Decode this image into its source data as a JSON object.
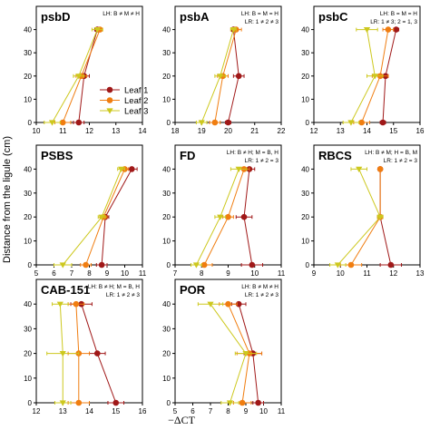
{
  "figure": {
    "y_axis_label": "Distance from the ligule (cm)",
    "x_axis_label": "−ΔCT",
    "legend": [
      "Leaf 1",
      "Leaf 2",
      "Leaf 3"
    ]
  },
  "colors": {
    "leaf1": "#a01818",
    "leaf2": "#f07d10",
    "leaf3": "#cdc81e"
  },
  "chart_data": [
    {
      "type": "line",
      "title": "psbD",
      "annotation": [
        "LH: B ≠ M ≠ H"
      ],
      "y": [
        40,
        20,
        0
      ],
      "ylim": [
        0,
        50
      ],
      "yticks": [
        0,
        10,
        20,
        30,
        40
      ],
      "xlim": [
        10,
        14
      ],
      "xticks": [
        10,
        11,
        12,
        13,
        14
      ],
      "series": [
        {
          "name": "Leaf 1",
          "x": [
            12.3,
            11.8,
            11.6
          ],
          "err": [
            0.1,
            0.2,
            0.2
          ]
        },
        {
          "name": "Leaf 2",
          "x": [
            12.4,
            11.7,
            11.0
          ],
          "err": [
            0.1,
            0.2,
            0.3
          ]
        },
        {
          "name": "Leaf 3",
          "x": [
            12.3,
            11.6,
            10.6
          ],
          "err": [
            0.2,
            0.2,
            0.3
          ]
        }
      ]
    },
    {
      "type": "line",
      "title": "psbA",
      "annotation": [
        "LH: B = M = H",
        "LR: 1 ≠ 2 ≠ 3"
      ],
      "y": [
        40,
        20,
        0
      ],
      "ylim": [
        0,
        50
      ],
      "yticks": [
        0,
        10,
        20,
        30,
        40
      ],
      "xlim": [
        18,
        22
      ],
      "xticks": [
        18,
        19,
        20,
        21,
        22
      ],
      "series": [
        {
          "name": "Leaf 1",
          "x": [
            20.2,
            20.4,
            20.0
          ],
          "err": [
            0.1,
            0.2,
            0.1
          ]
        },
        {
          "name": "Leaf 2",
          "x": [
            20.3,
            19.8,
            19.5
          ],
          "err": [
            0.2,
            0.2,
            0.2
          ]
        },
        {
          "name": "Leaf 3",
          "x": [
            20.2,
            19.7,
            19.0
          ],
          "err": [
            0.1,
            0.2,
            0.2
          ]
        }
      ]
    },
    {
      "type": "line",
      "title": "psbC",
      "annotation": [
        "LH: B = M = H",
        "LR: 1 ≠ 3; 2 = 1, 3"
      ],
      "y": [
        40,
        20,
        0
      ],
      "ylim": [
        0,
        50
      ],
      "yticks": [
        0,
        10,
        20,
        30,
        40
      ],
      "xlim": [
        12,
        16
      ],
      "xticks": [
        12,
        13,
        14,
        15,
        16
      ],
      "series": [
        {
          "name": "Leaf 1",
          "x": [
            15.1,
            14.7,
            14.6
          ],
          "err": [
            0.1,
            0.1,
            0.1
          ]
        },
        {
          "name": "Leaf 2",
          "x": [
            14.8,
            14.5,
            13.8
          ],
          "err": [
            0.2,
            0.3,
            0.3
          ]
        },
        {
          "name": "Leaf 3",
          "x": [
            14.0,
            14.3,
            13.4
          ],
          "err": [
            0.4,
            0.3,
            0.3
          ]
        }
      ]
    },
    {
      "type": "line",
      "title": "PSBS",
      "annotation": [],
      "y": [
        40,
        20,
        0
      ],
      "ylim": [
        0,
        50
      ],
      "yticks": [
        0,
        10,
        20,
        30,
        40
      ],
      "xlim": [
        5,
        11
      ],
      "xticks": [
        5,
        6,
        7,
        8,
        9,
        10,
        11
      ],
      "series": [
        {
          "name": "Leaf 1",
          "x": [
            10.4,
            8.9,
            8.7
          ],
          "err": [
            0.3,
            0.2,
            0.3
          ]
        },
        {
          "name": "Leaf 2",
          "x": [
            10.0,
            8.8,
            7.8
          ],
          "err": [
            0.2,
            0.2,
            0.3
          ]
        },
        {
          "name": "Leaf 3",
          "x": [
            9.8,
            8.7,
            6.5
          ],
          "err": [
            0.2,
            0.2,
            0.5
          ]
        }
      ]
    },
    {
      "type": "line",
      "title": "FD",
      "annotation": [
        "LH: B ≠ H; M = B, H",
        "LR: 1 ≠ 2 = 3"
      ],
      "y": [
        40,
        20,
        0
      ],
      "ylim": [
        0,
        50
      ],
      "yticks": [
        0,
        10,
        20,
        30,
        40
      ],
      "xlim": [
        7,
        11
      ],
      "xticks": [
        7,
        8,
        9,
        10,
        11
      ],
      "series": [
        {
          "name": "Leaf 1",
          "x": [
            9.8,
            9.6,
            9.9
          ],
          "err": [
            0.2,
            0.3,
            0.4
          ]
        },
        {
          "name": "Leaf 2",
          "x": [
            9.6,
            9.0,
            8.1
          ],
          "err": [
            0.2,
            0.2,
            0.3
          ]
        },
        {
          "name": "Leaf 3",
          "x": [
            9.4,
            8.7,
            7.8
          ],
          "err": [
            0.3,
            0.2,
            0.2
          ]
        }
      ]
    },
    {
      "type": "line",
      "title": "RBCS",
      "annotation": [
        "LH: B ≠ M; H = B, M",
        "LR: 1 ≠ 2 = 3"
      ],
      "y": [
        40,
        20,
        0
      ],
      "ylim": [
        0,
        50
      ],
      "yticks": [
        0,
        10,
        20,
        30,
        40
      ],
      "xlim": [
        9,
        13
      ],
      "xticks": [
        9,
        10,
        11,
        12,
        13
      ],
      "series": [
        {
          "name": "Leaf 1",
          "x": [
            11.5,
            11.5,
            11.9
          ],
          "err": [
            0.05,
            0.1,
            0.4
          ]
        },
        {
          "name": "Leaf 2",
          "x": [
            11.5,
            11.5,
            10.4
          ],
          "err": [
            0.05,
            0.1,
            0.4
          ]
        },
        {
          "name": "Leaf 3",
          "x": [
            10.7,
            11.5,
            9.9
          ],
          "err": [
            0.3,
            0.1,
            0.3
          ]
        }
      ]
    },
    {
      "type": "line",
      "title": "CAB-151",
      "annotation": [
        "LH: B ≠ H; M = B, H",
        "LR: 1 ≠ 2 ≠ 3"
      ],
      "y": [
        40,
        20,
        0
      ],
      "ylim": [
        0,
        50
      ],
      "yticks": [
        0,
        10,
        20,
        30,
        40
      ],
      "xlim": [
        12,
        16
      ],
      "xticks": [
        12,
        13,
        14,
        15,
        16
      ],
      "series": [
        {
          "name": "Leaf 1",
          "x": [
            13.7,
            14.3,
            15.0
          ],
          "err": [
            0.4,
            0.3,
            0.3
          ]
        },
        {
          "name": "Leaf 2",
          "x": [
            13.5,
            13.6,
            13.6
          ],
          "err": [
            0.3,
            0.4,
            0.4
          ]
        },
        {
          "name": "Leaf 3",
          "x": [
            12.9,
            13.0,
            13.0
          ],
          "err": [
            0.3,
            0.6,
            0.3
          ]
        }
      ]
    },
    {
      "type": "line",
      "title": "POR",
      "annotation": [
        "LH: B ≠ M ≠ H",
        "LR: 1 ≠ 2 ≠ 3"
      ],
      "y": [
        40,
        20,
        0
      ],
      "ylim": [
        0,
        50
      ],
      "yticks": [
        0,
        10,
        20,
        30,
        40
      ],
      "xlim": [
        5,
        11
      ],
      "xticks": [
        5,
        6,
        7,
        8,
        9,
        10,
        11
      ],
      "series": [
        {
          "name": "Leaf 1",
          "x": [
            8.6,
            9.4,
            9.7
          ],
          "err": [
            0.4,
            0.5,
            0.3
          ]
        },
        {
          "name": "Leaf 2",
          "x": [
            8.0,
            9.2,
            8.8
          ],
          "err": [
            0.5,
            0.7,
            0.5
          ]
        },
        {
          "name": "Leaf 3",
          "x": [
            7.0,
            9.0,
            8.1
          ],
          "err": [
            0.7,
            0.6,
            0.5
          ]
        }
      ]
    }
  ]
}
